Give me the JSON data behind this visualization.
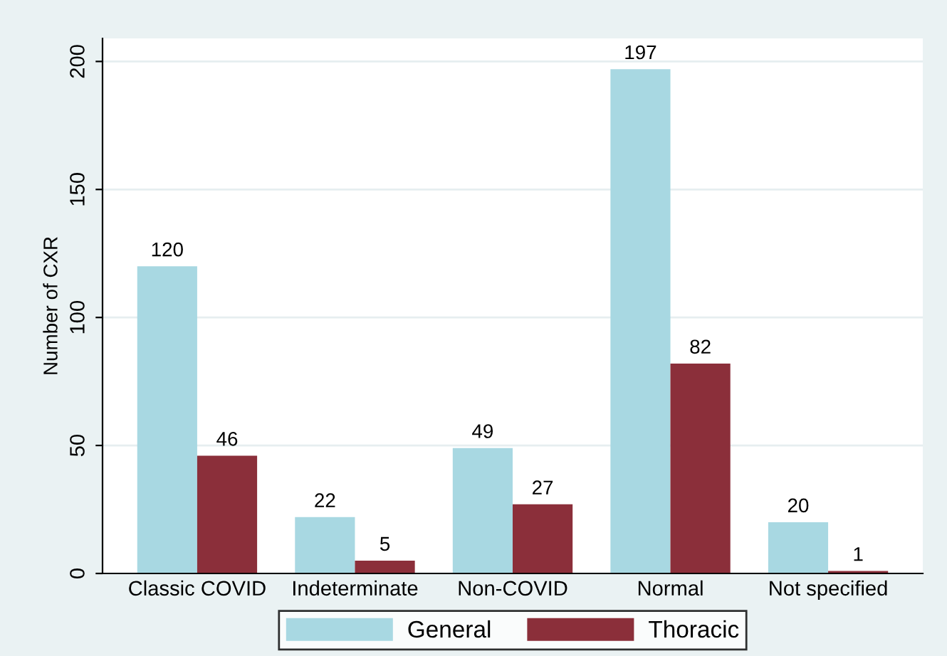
{
  "chart_data": {
    "type": "bar",
    "ylabel": "Number of CXR",
    "categories": [
      "Classic COVID",
      "Indeterminate",
      "Non-COVID",
      "Normal",
      "Not specified"
    ],
    "series": [
      {
        "name": "General",
        "color": "#a8d8e2",
        "values": [
          120,
          22,
          49,
          197,
          20
        ]
      },
      {
        "name": "Thoracic",
        "color": "#8b2f3a",
        "values": [
          46,
          5,
          27,
          82,
          1
        ]
      }
    ],
    "ylim": [
      0,
      209
    ],
    "yticks": [
      0,
      50,
      100,
      150,
      200
    ],
    "grid": "y",
    "legend": "bottom",
    "data_labels": true
  }
}
